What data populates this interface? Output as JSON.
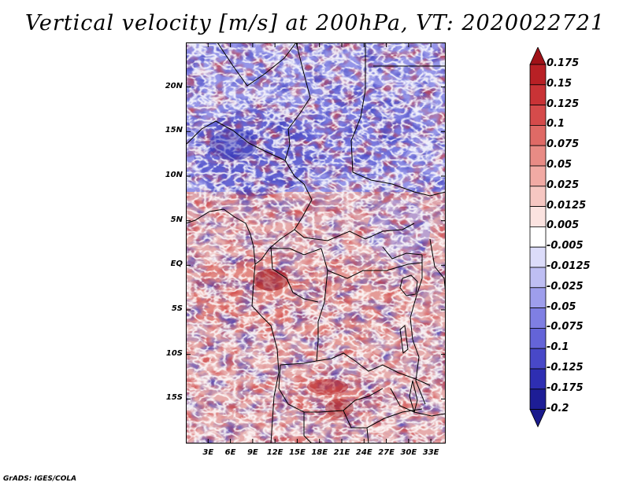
{
  "title": "Vertical velocity [m/s] at 200hPa, VT: 2020022721",
  "credit": "GrADS: IGES/COLA",
  "map": {
    "region": "Central and Southern Africa",
    "variable": "Vertical velocity",
    "units": "m/s",
    "level": "200hPa",
    "valid_time": "2020022721",
    "lon_range": [
      0,
      35
    ],
    "lat_range": [
      -20,
      25
    ],
    "lat_ticks": [
      {
        "value": 20,
        "label": "20N"
      },
      {
        "value": 15,
        "label": "15N"
      },
      {
        "value": 10,
        "label": "10N"
      },
      {
        "value": 5,
        "label": "5N"
      },
      {
        "value": 0,
        "label": "EQ"
      },
      {
        "value": -5,
        "label": "5S"
      },
      {
        "value": -10,
        "label": "10S"
      },
      {
        "value": -15,
        "label": "15S"
      }
    ],
    "lon_ticks": [
      {
        "value": 3,
        "label": "3E"
      },
      {
        "value": 6,
        "label": "6E"
      },
      {
        "value": 9,
        "label": "9E"
      },
      {
        "value": 12,
        "label": "12E"
      },
      {
        "value": 15,
        "label": "15E"
      },
      {
        "value": 18,
        "label": "18E"
      },
      {
        "value": 21,
        "label": "21E"
      },
      {
        "value": 24,
        "label": "24E"
      },
      {
        "value": 27,
        "label": "27E"
      },
      {
        "value": 30,
        "label": "30E"
      },
      {
        "value": 33,
        "label": "33E"
      }
    ]
  },
  "colorbar": {
    "levels": [
      {
        "label": "0.175",
        "color": "#a01218"
      },
      {
        "label": "0.15",
        "color": "#b82025"
      },
      {
        "label": "0.125",
        "color": "#c93336"
      },
      {
        "label": "0.1",
        "color": "#d54b4b"
      },
      {
        "label": "0.075",
        "color": "#df6a66"
      },
      {
        "label": "0.05",
        "color": "#e88b85"
      },
      {
        "label": "0.025",
        "color": "#f1aaa4"
      },
      {
        "label": "0.0125",
        "color": "#f6c7c2"
      },
      {
        "label": "0.005",
        "color": "#fbe3e0"
      },
      {
        "label": "-0.005",
        "color": "#ffffff"
      },
      {
        "label": "-0.0125",
        "color": "#dcdcfa"
      },
      {
        "label": "-0.025",
        "color": "#bebef3"
      },
      {
        "label": "-0.05",
        "color": "#9e9eec"
      },
      {
        "label": "-0.075",
        "color": "#7f7fe3"
      },
      {
        "label": "-0.1",
        "color": "#6464d8"
      },
      {
        "label": "-0.125",
        "color": "#4848c8"
      },
      {
        "label": "-0.175",
        "color": "#2e2eb2"
      },
      {
        "label": "-0.2",
        "color": "#1d1d96"
      }
    ],
    "top_color": "#a01218",
    "bottom_color": "#1a1a8c"
  }
}
